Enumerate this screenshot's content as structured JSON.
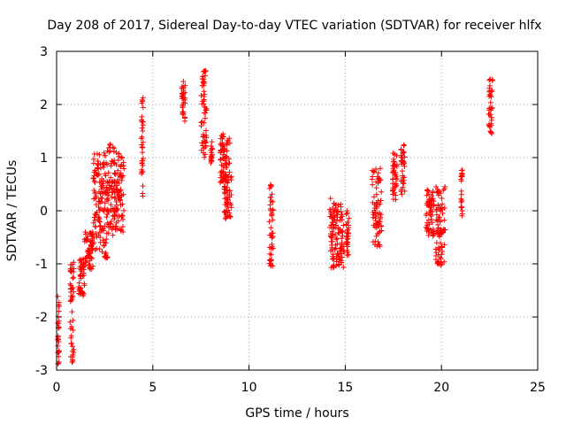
{
  "chart_data": {
    "type": "scatter",
    "title": "Day 208 of 2017, Sidereal Day-to-day VTEC variation (SDTVAR) for receiver hlfx",
    "xlabel": "GPS time / hours",
    "ylabel": "SDTVAR / TECUs",
    "xlim": [
      0,
      25
    ],
    "ylim": [
      -3,
      3
    ],
    "xticks": [
      0,
      5,
      10,
      15,
      20,
      25
    ],
    "yticks": [
      -3,
      -2,
      -1,
      0,
      1,
      2,
      3
    ],
    "grid": true,
    "marker": "+",
    "color": "#ff0000",
    "segments": [
      {
        "start": 0.05,
        "end": 0.15,
        "from": -2.9,
        "to": -1.6
      },
      {
        "start": 0.7,
        "end": 0.9,
        "from": -2.9,
        "to": -0.9
      },
      {
        "start": 1.15,
        "end": 1.45,
        "from": -1.6,
        "to": -0.9
      },
      {
        "start": 1.45,
        "end": 1.9,
        "from": -1.1,
        "to": -0.4
      },
      {
        "start": 1.9,
        "end": 2.3,
        "from": -0.8,
        "to": 1.1
      },
      {
        "start": 2.3,
        "end": 2.7,
        "from": -0.9,
        "to": 1.15
      },
      {
        "start": 2.7,
        "end": 3.1,
        "from": -0.5,
        "to": 1.3
      },
      {
        "start": 3.1,
        "end": 3.5,
        "from": -0.4,
        "to": 1.1
      },
      {
        "start": 4.4,
        "end": 4.5,
        "from": 0.25,
        "to": 2.15
      },
      {
        "start": 6.5,
        "end": 6.7,
        "from": 1.65,
        "to": 2.45
      },
      {
        "start": 7.5,
        "end": 7.8,
        "from": 1.0,
        "to": 2.7
      },
      {
        "start": 8.0,
        "end": 8.1,
        "from": 0.85,
        "to": 1.3
      },
      {
        "start": 8.5,
        "end": 9.0,
        "from": 0.5,
        "to": 1.45
      },
      {
        "start": 8.7,
        "end": 9.1,
        "from": -0.15,
        "to": 0.7
      },
      {
        "start": 11.05,
        "end": 11.25,
        "from": -1.05,
        "to": 0.5
      },
      {
        "start": 14.2,
        "end": 14.45,
        "from": -1.15,
        "to": 0.3
      },
      {
        "start": 14.45,
        "end": 14.95,
        "from": -1.1,
        "to": 0.15
      },
      {
        "start": 15.05,
        "end": 15.2,
        "from": -0.9,
        "to": 0.0
      },
      {
        "start": 16.4,
        "end": 16.9,
        "from": -0.7,
        "to": 0.8
      },
      {
        "start": 17.45,
        "end": 17.7,
        "from": 0.2,
        "to": 1.1
      },
      {
        "start": 17.9,
        "end": 18.1,
        "from": 0.25,
        "to": 1.25
      },
      {
        "start": 19.2,
        "end": 19.6,
        "from": -0.5,
        "to": 0.4
      },
      {
        "start": 19.7,
        "end": 20.2,
        "from": -1.05,
        "to": 0.5
      },
      {
        "start": 21.0,
        "end": 21.1,
        "from": -0.1,
        "to": 0.8
      },
      {
        "start": 22.45,
        "end": 22.65,
        "from": 1.45,
        "to": 2.5
      }
    ]
  }
}
